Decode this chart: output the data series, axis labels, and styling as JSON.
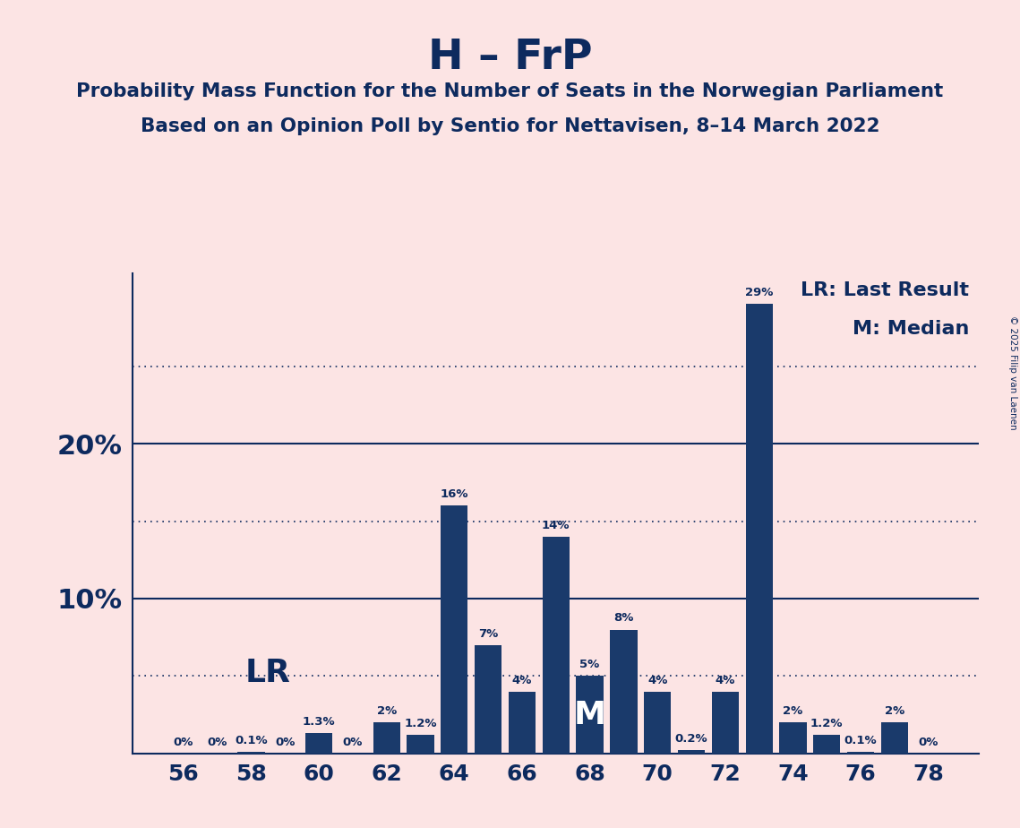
{
  "title": "H – FrP",
  "subtitle1": "Probability Mass Function for the Number of Seats in the Norwegian Parliament",
  "subtitle2": "Based on an Opinion Poll by Sentio for Nettavisen, 8–14 March 2022",
  "copyright": "© 2025 Filip van Laenen",
  "legend_lr": "LR: Last Result",
  "legend_m": "M: Median",
  "lr_label": "LR",
  "m_label": "M",
  "background_color": "#fce4e4",
  "bar_color": "#1a3a6b",
  "text_color": "#0d2a5e",
  "seats": [
    56,
    57,
    58,
    59,
    60,
    61,
    62,
    63,
    64,
    65,
    66,
    67,
    68,
    69,
    70,
    71,
    72,
    73,
    74,
    75,
    76,
    77,
    78
  ],
  "probs": [
    0.0,
    0.0,
    0.1,
    0.0,
    1.3,
    0.0,
    2.0,
    1.2,
    16.0,
    7.0,
    4.0,
    14.0,
    5.0,
    8.0,
    4.0,
    0.2,
    4.0,
    29.0,
    2.0,
    1.2,
    0.1,
    2.0,
    0.0
  ],
  "lr_seat": 60,
  "m_seat": 68,
  "xtick_seats": [
    56,
    58,
    60,
    62,
    64,
    66,
    68,
    70,
    72,
    74,
    76,
    78
  ],
  "solid_gridlines": [
    10.0,
    20.0
  ],
  "dotted_gridlines": [
    5.0,
    15.0,
    25.0
  ],
  "ymax": 31,
  "bar_width": 0.8
}
